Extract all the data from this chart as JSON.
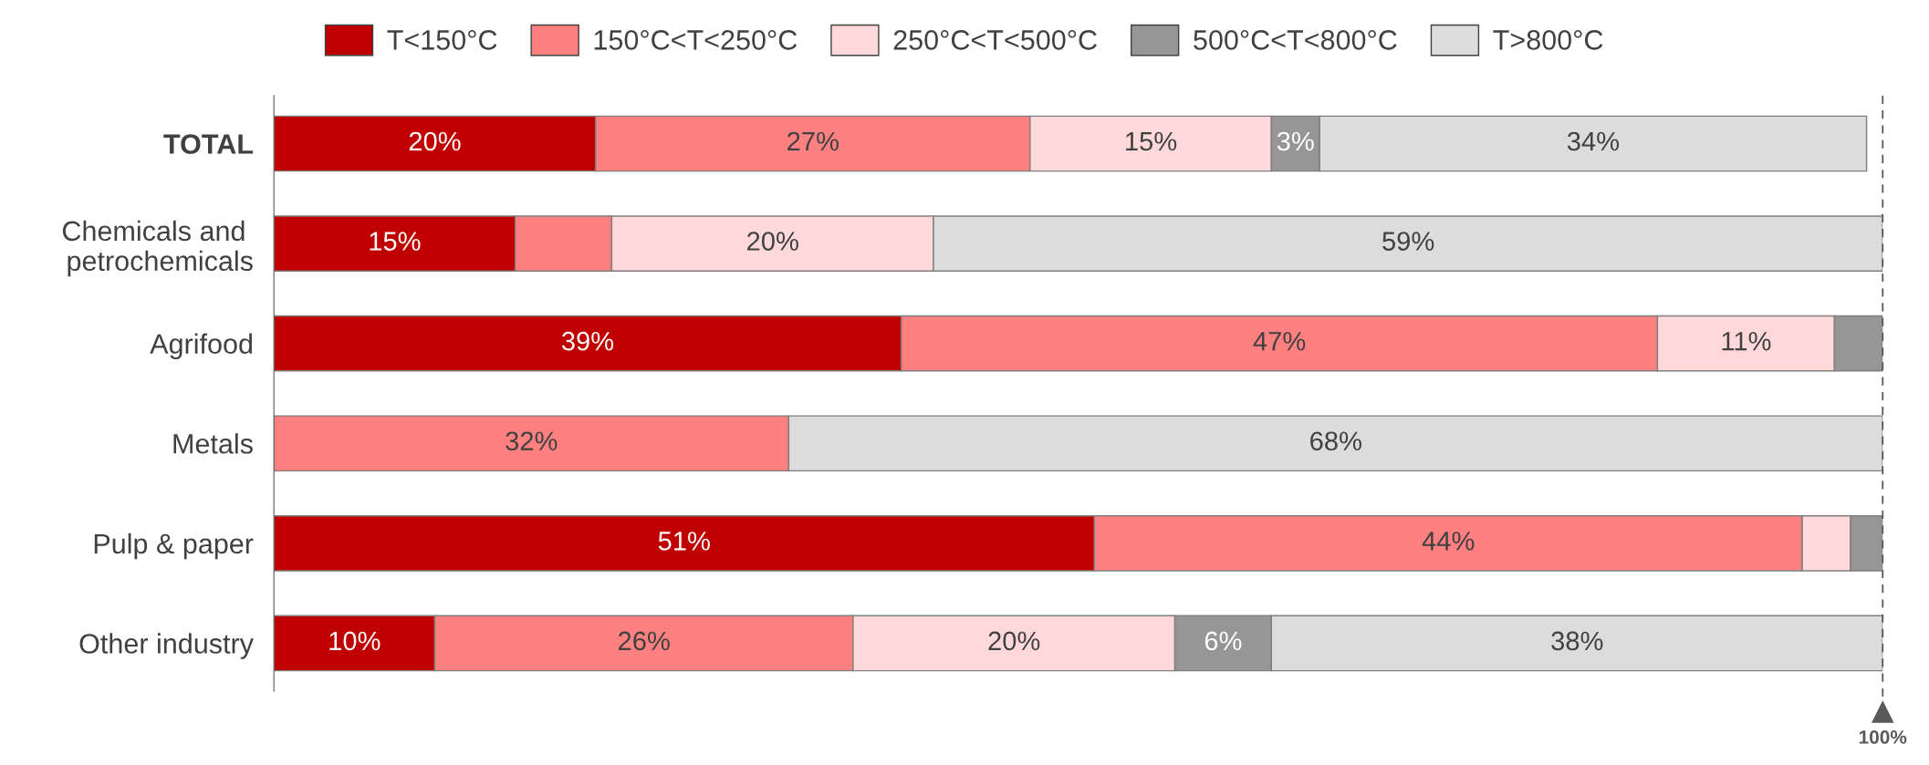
{
  "chart_data": {
    "type": "bar",
    "orientation": "horizontal",
    "stacked": true,
    "legend": "top",
    "tick_labels": false,
    "grid": false,
    "categories": [
      "TOTAL",
      "Chemicals and \npetrochemicals",
      "Agrifood",
      "Metals",
      "Pulp & paper",
      "Other industry"
    ],
    "xlim": [
      0,
      100
    ],
    "series": [
      {
        "name": "T<150°C",
        "color": "#c00000",
        "values": [
          20,
          15,
          39,
          null,
          51,
          10
        ],
        "value_labels": [
          "20%",
          "15%",
          "39%",
          null,
          "51%",
          "10%"
        ]
      },
      {
        "name": "150°C<T<250°C",
        "color": "#ff8080",
        "values": [
          27,
          6,
          47,
          32,
          44,
          26
        ],
        "value_labels": [
          "27%",
          null,
          "47%",
          "32%",
          "44%",
          "26%"
        ]
      },
      {
        "name": "250°C<T<500°C",
        "color": "#ffd9d9",
        "values": [
          15,
          20,
          11,
          null,
          3,
          20
        ],
        "value_labels": [
          "15%",
          "20%",
          "11%",
          null,
          null,
          "20%"
        ]
      },
      {
        "name": "500°C<T<800°C",
        "color": "#969696",
        "values": [
          3,
          null,
          3,
          null,
          2,
          6
        ],
        "value_labels": [
          "3%",
          null,
          null,
          null,
          null,
          "6%"
        ]
      },
      {
        "name": "T>800°C",
        "color": "#dcdcdc",
        "values": [
          34,
          59,
          null,
          68,
          null,
          38
        ],
        "value_labels": [
          "34%",
          "59%",
          null,
          "68%",
          null,
          "38%"
        ]
      }
    ],
    "ref_lines": [
      {
        "axis": "x",
        "value": 100,
        "label": "100%",
        "color": "#595959",
        "line_style": "dashed"
      }
    ]
  }
}
